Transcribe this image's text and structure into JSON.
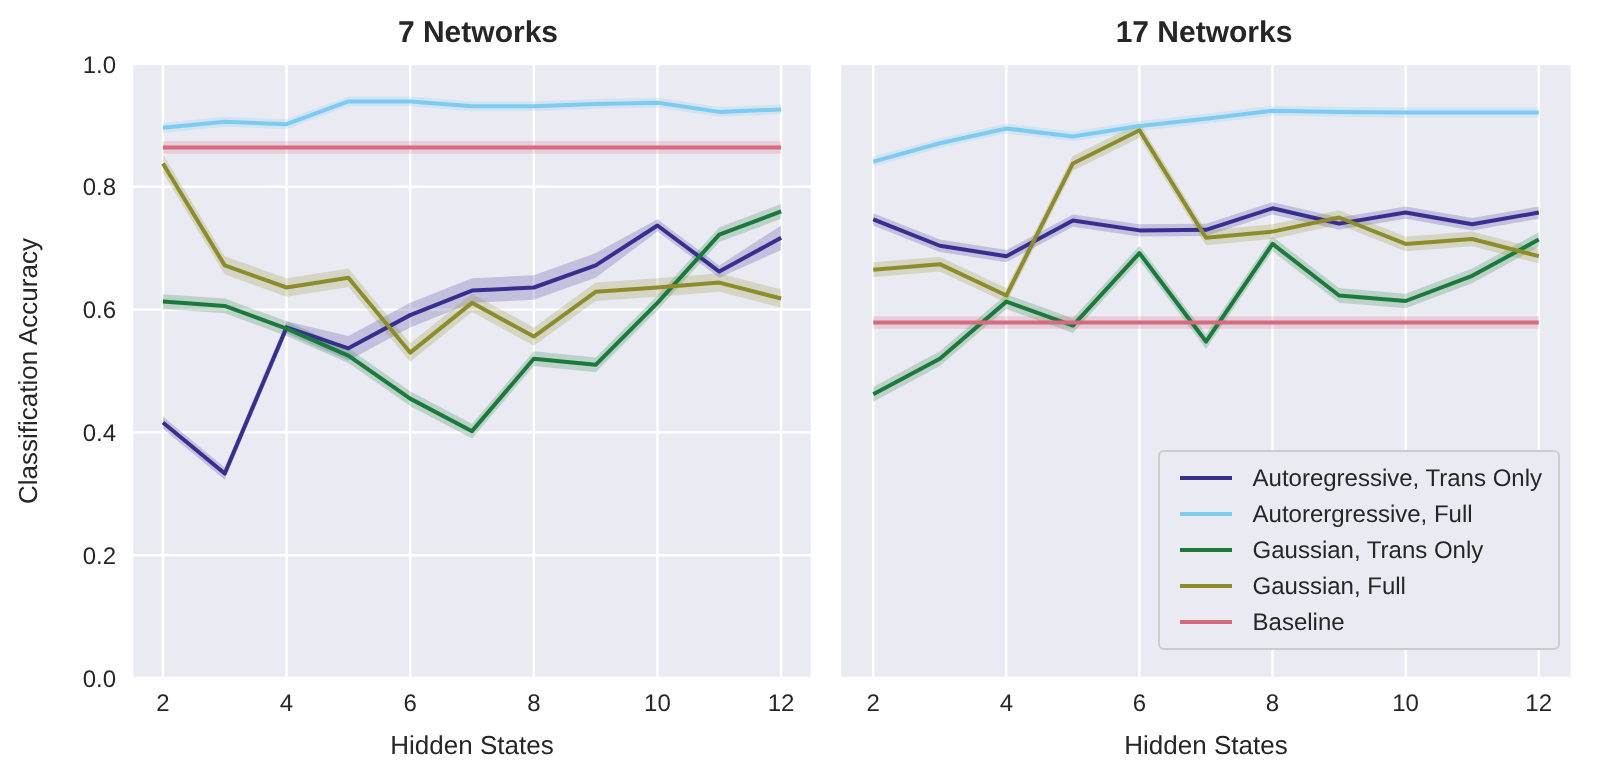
{
  "chart_data": [
    {
      "type": "line",
      "title": "7 Networks",
      "xlabel": "Hidden States",
      "ylabel": "Classification Accuracy",
      "x": [
        2,
        3,
        4,
        5,
        6,
        7,
        8,
        9,
        10,
        11,
        12
      ],
      "xlim": [
        1.5,
        12.5
      ],
      "xticks": [
        2,
        4,
        6,
        8,
        10,
        12
      ],
      "ylim": [
        0,
        1
      ],
      "yticks": [
        {
          "value": 0,
          "label": "0.0"
        },
        0.2,
        0.4,
        0.6,
        0.8,
        {
          "value": 1,
          "label": "1.0"
        }
      ],
      "grid": true,
      "legend": false,
      "series": [
        {
          "color": "#372f8f",
          "values": [
            0.416,
            0.333,
            0.571,
            0.537,
            0.591,
            0.631,
            0.636,
            0.672,
            0.737,
            0.662,
            0.717
          ],
          "lower": [
            0.406,
            0.323,
            0.561,
            0.517,
            0.571,
            0.611,
            0.616,
            0.652,
            0.727,
            0.652,
            0.697
          ],
          "upper": [
            0.426,
            0.343,
            0.581,
            0.557,
            0.611,
            0.651,
            0.656,
            0.692,
            0.747,
            0.672,
            0.737
          ]
        },
        {
          "color": "#7ecbf0",
          "values": [
            0.896,
            0.906,
            0.902,
            0.939,
            0.939,
            0.931,
            0.931,
            0.935,
            0.937,
            0.922,
            0.926
          ],
          "lower": [
            0.888,
            0.898,
            0.894,
            0.931,
            0.931,
            0.923,
            0.923,
            0.927,
            0.929,
            0.914,
            0.918
          ],
          "upper": [
            0.904,
            0.914,
            0.91,
            0.947,
            0.947,
            0.939,
            0.939,
            0.943,
            0.945,
            0.93,
            0.934
          ]
        },
        {
          "color": "#1a7a3a",
          "values": [
            0.613,
            0.606,
            0.569,
            0.525,
            0.455,
            0.402,
            0.52,
            0.51,
            0.611,
            0.722,
            0.76
          ],
          "lower": [
            0.601,
            0.594,
            0.557,
            0.513,
            0.443,
            0.39,
            0.508,
            0.498,
            0.599,
            0.71,
            0.748
          ],
          "upper": [
            0.625,
            0.618,
            0.581,
            0.537,
            0.467,
            0.414,
            0.532,
            0.522,
            0.623,
            0.734,
            0.772
          ]
        },
        {
          "color": "#8c8c2a",
          "values": [
            0.838,
            0.672,
            0.636,
            0.652,
            0.53,
            0.611,
            0.556,
            0.629,
            0.636,
            0.644,
            0.618
          ],
          "lower": [
            0.823,
            0.657,
            0.621,
            0.637,
            0.515,
            0.596,
            0.541,
            0.614,
            0.621,
            0.629,
            0.603
          ],
          "upper": [
            0.853,
            0.687,
            0.651,
            0.667,
            0.545,
            0.626,
            0.571,
            0.644,
            0.651,
            0.659,
            0.633
          ]
        },
        {
          "color": "#d66b7f",
          "values": [
            0.864,
            0.864,
            0.864,
            0.864,
            0.864,
            0.864,
            0.864,
            0.864,
            0.864,
            0.864,
            0.864
          ],
          "lower": [
            0.854,
            0.854,
            0.854,
            0.854,
            0.854,
            0.854,
            0.854,
            0.854,
            0.854,
            0.854,
            0.854
          ],
          "upper": [
            0.874,
            0.874,
            0.874,
            0.874,
            0.874,
            0.874,
            0.874,
            0.874,
            0.874,
            0.874,
            0.874
          ]
        }
      ]
    },
    {
      "type": "line",
      "title": "17 Networks",
      "xlabel": "Hidden States",
      "x": [
        2,
        3,
        4,
        5,
        6,
        7,
        8,
        9,
        10,
        11,
        12
      ],
      "xlim": [
        1.5,
        12.5
      ],
      "xticks": [
        2,
        4,
        6,
        8,
        10,
        12
      ],
      "ylim": [
        0,
        1
      ],
      "yticks": [
        0,
        0.2,
        0.4,
        0.6,
        0.8,
        1
      ],
      "tick_labels": "x",
      "grid": true,
      "legend": "bottom right",
      "series": [
        {
          "name": "Autoregressive, Trans Only",
          "color": "#372f8f",
          "values": [
            0.747,
            0.704,
            0.687,
            0.745,
            0.729,
            0.73,
            0.765,
            0.74,
            0.758,
            0.739,
            0.758
          ],
          "lower": [
            0.737,
            0.694,
            0.677,
            0.735,
            0.719,
            0.72,
            0.755,
            0.73,
            0.748,
            0.729,
            0.748
          ],
          "upper": [
            0.757,
            0.714,
            0.697,
            0.755,
            0.739,
            0.74,
            0.775,
            0.75,
            0.768,
            0.749,
            0.768
          ]
        },
        {
          "name": "Autorergressive, Full",
          "color": "#7ecbf0",
          "values": [
            0.841,
            0.871,
            0.895,
            0.882,
            0.899,
            0.911,
            0.924,
            0.922,
            0.921,
            0.921,
            0.921
          ],
          "lower": [
            0.833,
            0.863,
            0.887,
            0.874,
            0.891,
            0.903,
            0.916,
            0.914,
            0.913,
            0.913,
            0.913
          ],
          "upper": [
            0.849,
            0.879,
            0.903,
            0.89,
            0.907,
            0.919,
            0.932,
            0.93,
            0.929,
            0.929,
            0.929
          ]
        },
        {
          "name": "Gaussian, Trans Only",
          "color": "#1a7a3a",
          "values": [
            0.462,
            0.52,
            0.613,
            0.574,
            0.692,
            0.548,
            0.707,
            0.623,
            0.614,
            0.655,
            0.714
          ],
          "lower": [
            0.45,
            0.508,
            0.601,
            0.562,
            0.68,
            0.536,
            0.695,
            0.611,
            0.602,
            0.643,
            0.702
          ],
          "upper": [
            0.474,
            0.532,
            0.625,
            0.586,
            0.704,
            0.56,
            0.719,
            0.635,
            0.626,
            0.667,
            0.726
          ]
        },
        {
          "name": "Gaussian, Full",
          "color": "#8c8c2a",
          "values": [
            0.665,
            0.674,
            0.623,
            0.838,
            0.892,
            0.717,
            0.727,
            0.75,
            0.707,
            0.715,
            0.687
          ],
          "lower": [
            0.653,
            0.662,
            0.611,
            0.826,
            0.88,
            0.705,
            0.715,
            0.738,
            0.695,
            0.703,
            0.675
          ],
          "upper": [
            0.677,
            0.686,
            0.635,
            0.85,
            0.904,
            0.729,
            0.739,
            0.762,
            0.719,
            0.727,
            0.699
          ]
        },
        {
          "name": "Baseline",
          "color": "#d66b7f",
          "values": [
            0.579,
            0.579,
            0.579,
            0.579,
            0.579,
            0.579,
            0.579,
            0.579,
            0.579,
            0.579,
            0.579
          ],
          "lower": [
            0.569,
            0.569,
            0.569,
            0.569,
            0.569,
            0.569,
            0.569,
            0.569,
            0.569,
            0.569,
            0.569
          ],
          "upper": [
            0.589,
            0.589,
            0.589,
            0.589,
            0.589,
            0.589,
            0.589,
            0.589,
            0.589,
            0.589,
            0.589
          ]
        }
      ]
    }
  ]
}
